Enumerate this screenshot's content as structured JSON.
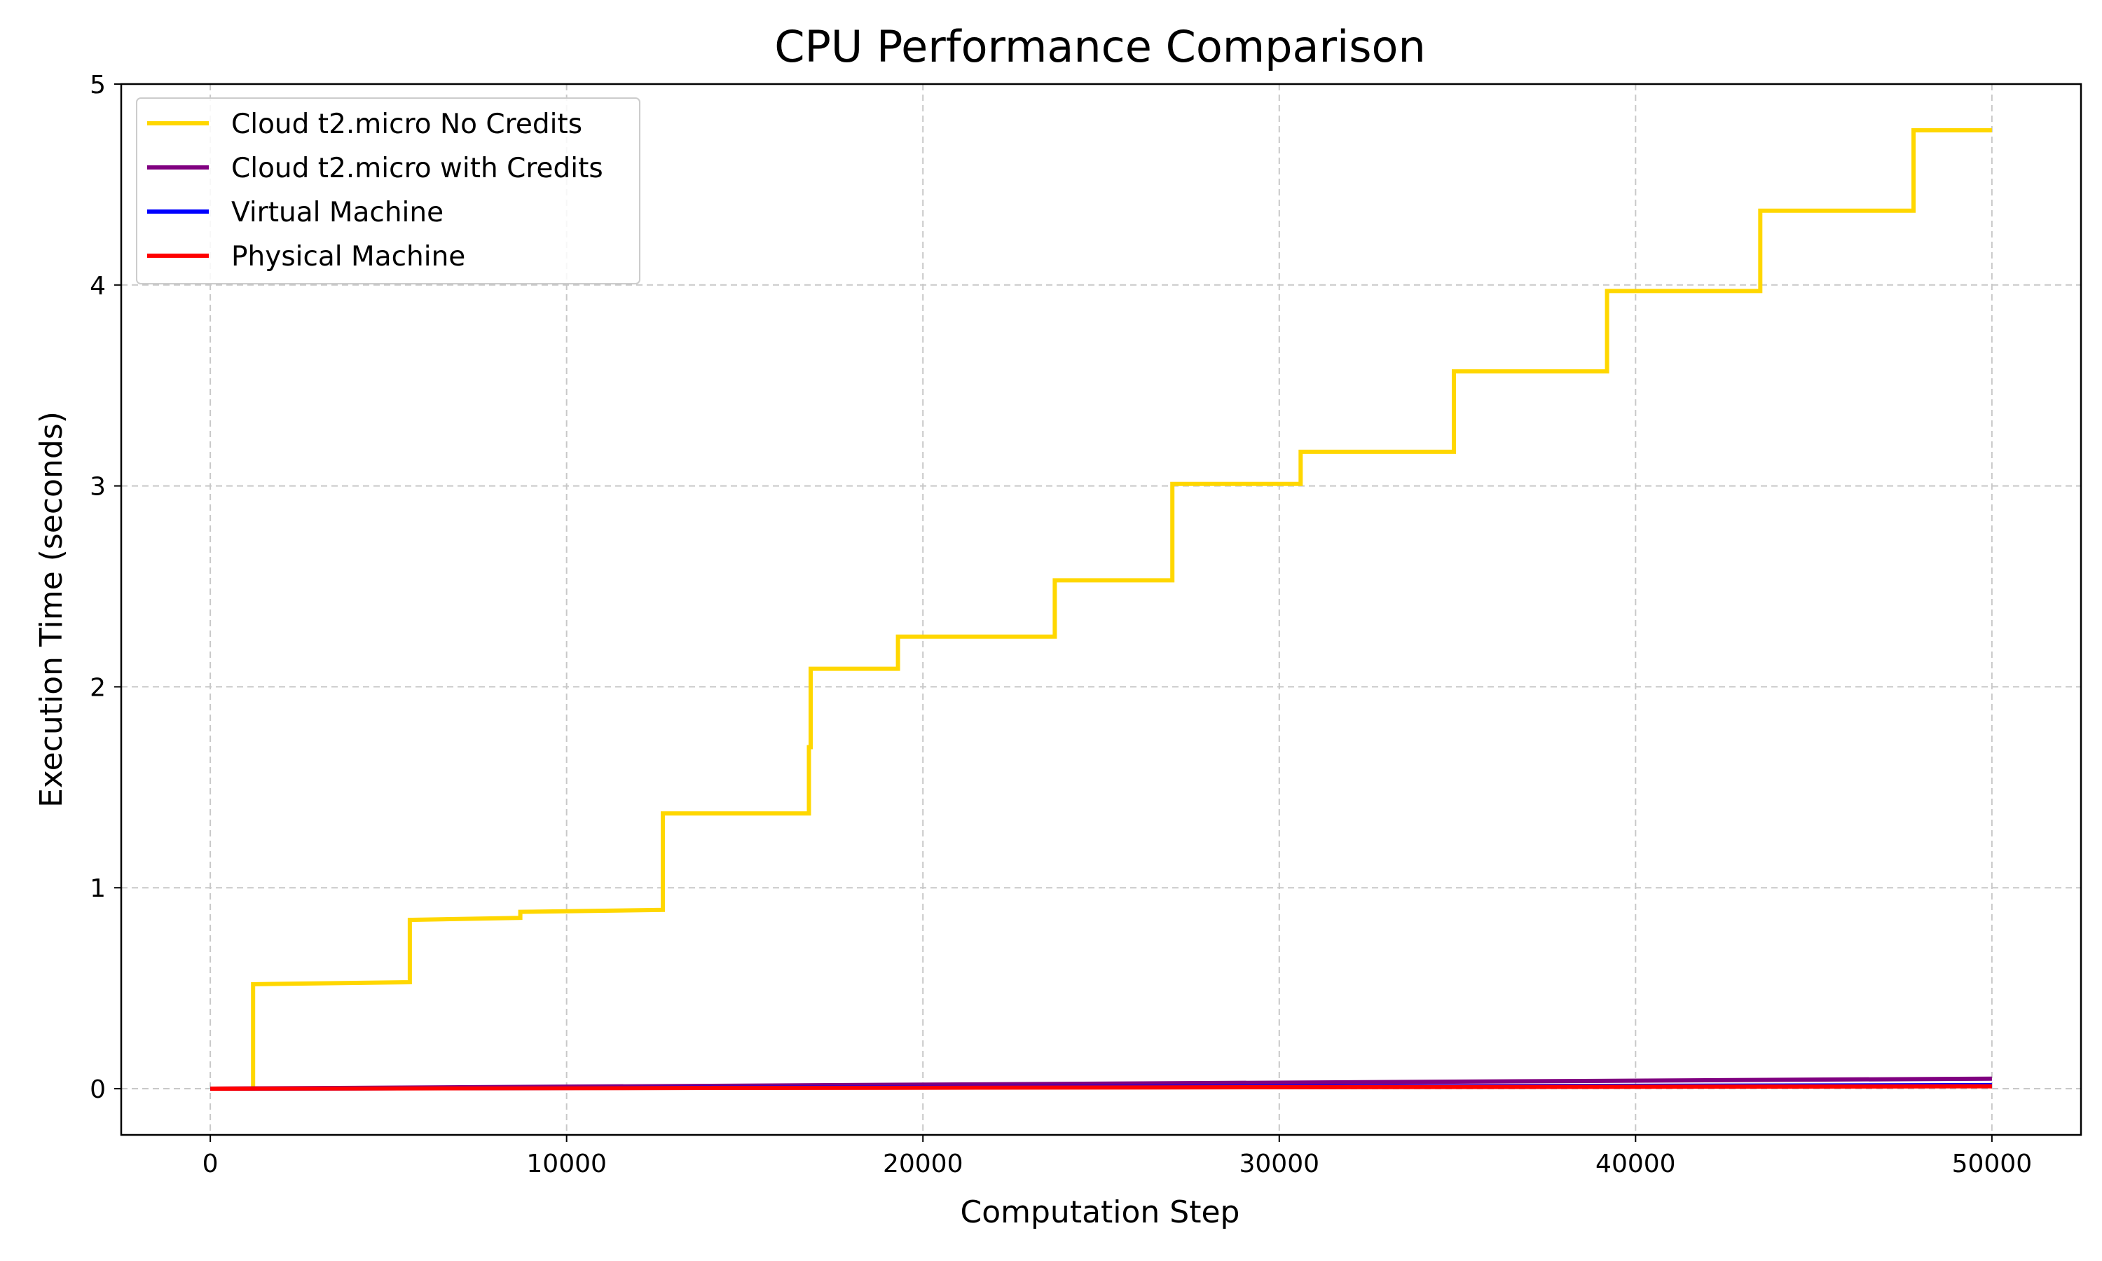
{
  "chart_data": {
    "type": "line",
    "title": "CPU Performance Comparison",
    "xlabel": "Computation Step",
    "ylabel": "Execution Time (seconds)",
    "xlim": [
      -2500,
      52500
    ],
    "ylim": [
      -0.23,
      5
    ],
    "xticks": [
      0,
      10000,
      20000,
      30000,
      40000,
      50000
    ],
    "yticks": [
      0,
      1,
      2,
      3,
      4,
      5
    ],
    "grid": true,
    "legend_position": "top-left",
    "series": [
      {
        "name": "Cloud t2.micro No Credits",
        "color": "#FFD700",
        "x": [
          0,
          1200,
          1200,
          5600,
          5600,
          8700,
          8700,
          12700,
          12700,
          16800,
          16800,
          16850,
          16850,
          19300,
          19300,
          23700,
          23700,
          27000,
          27000,
          30600,
          30600,
          34900,
          34900,
          39200,
          39200,
          43500,
          43500,
          47800,
          47800,
          50000
        ],
        "y": [
          0,
          0,
          0.52,
          0.53,
          0.84,
          0.85,
          0.88,
          0.89,
          1.37,
          1.37,
          1.7,
          1.7,
          2.09,
          2.09,
          2.25,
          2.25,
          2.53,
          2.53,
          3.01,
          3.01,
          3.17,
          3.17,
          3.57,
          3.57,
          3.97,
          3.97,
          4.37,
          4.37,
          4.77,
          4.77
        ]
      },
      {
        "name": "Cloud t2.micro with Credits",
        "color": "#800080",
        "x": [
          0,
          50000
        ],
        "y": [
          0,
          0.05
        ]
      },
      {
        "name": "Virtual Machine",
        "color": "#0000FF",
        "x": [
          0,
          50000
        ],
        "y": [
          0,
          0.018
        ]
      },
      {
        "name": "Physical Machine",
        "color": "#FF0000",
        "x": [
          0,
          50000
        ],
        "y": [
          0,
          0.012
        ]
      }
    ]
  }
}
